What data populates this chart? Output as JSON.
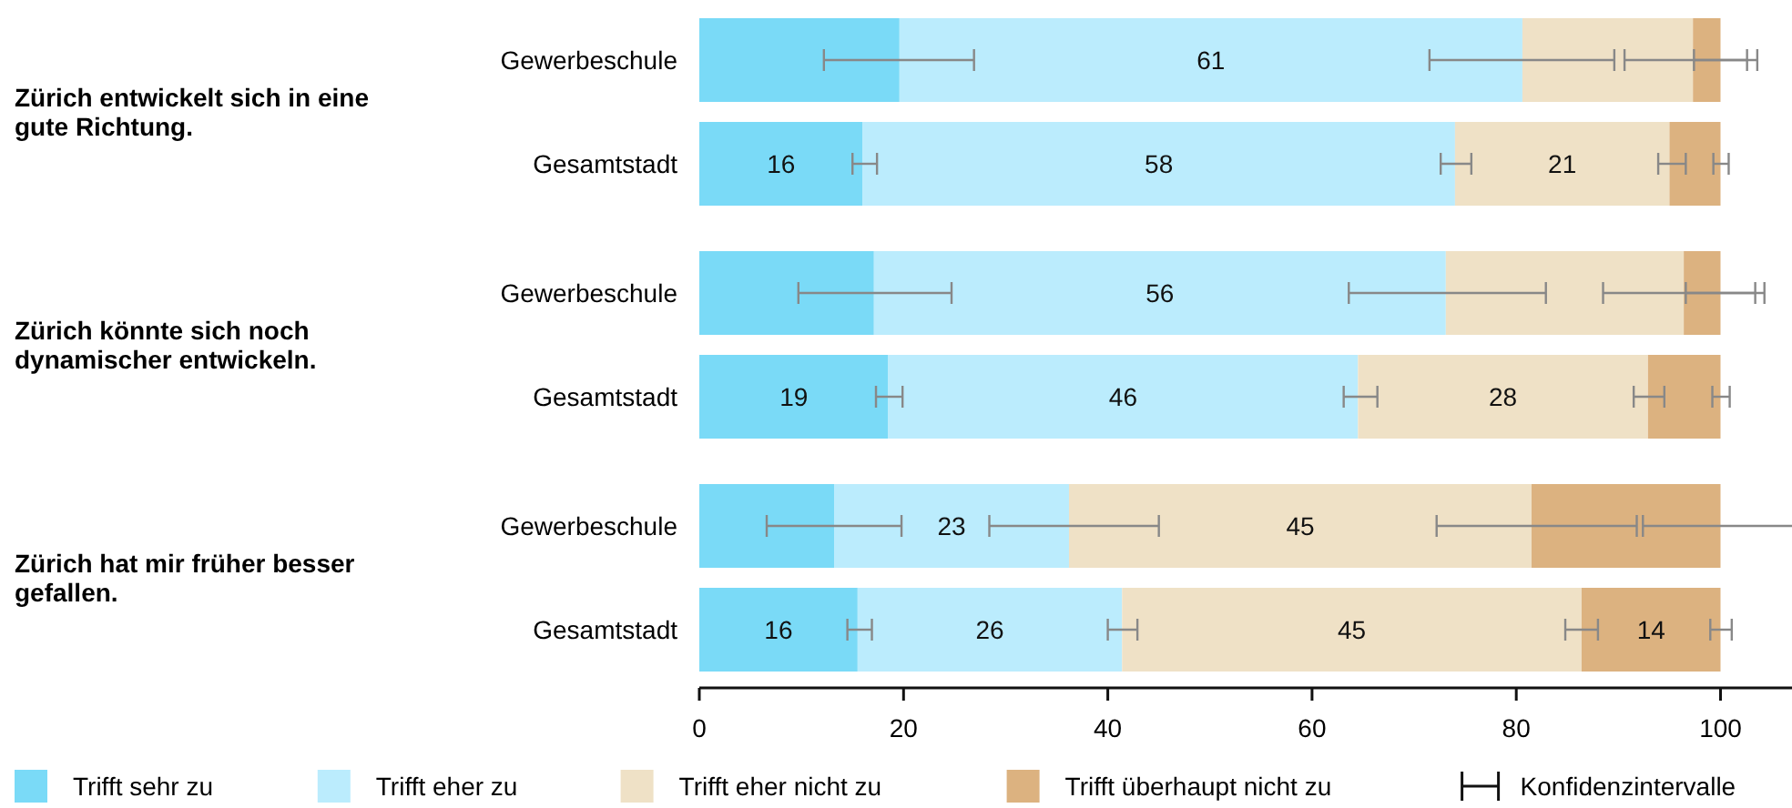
{
  "chart_data": {
    "type": "bar",
    "orientation": "horizontal",
    "stacked": true,
    "categories": [
      "Gewerbeschule",
      "Gesamtstadt",
      "Gewerbeschule",
      "Gesamtstadt",
      "Gewerbeschule",
      "Gesamtstadt"
    ],
    "series": [
      {
        "name": "Trifft sehr zu",
        "color": "#7adaf7",
        "values": [
          19.6,
          16,
          17.1,
          18.5,
          13.2,
          15.5
        ],
        "value_labels": [
          null,
          "16",
          null,
          "19",
          null,
          "16"
        ],
        "errors": [
          [
            12.2,
            26.9
          ],
          [
            15.0,
            17.4
          ],
          [
            9.7,
            24.7
          ],
          [
            17.3,
            19.9
          ],
          [
            6.6,
            19.8
          ],
          [
            14.5,
            16.9
          ]
        ]
      },
      {
        "name": "Trifft eher zu",
        "color": "#bbecfd",
        "values": [
          61,
          58,
          56,
          46,
          23,
          25.9
        ],
        "value_labels": [
          "61",
          "58",
          "56",
          "46",
          "23",
          "26"
        ],
        "errors": [
          [
            71.5,
            89.6
          ],
          [
            72.6,
            75.6
          ],
          [
            63.6,
            82.9
          ],
          [
            63.1,
            66.4
          ],
          [
            28.4,
            45.0
          ],
          [
            40.0,
            42.9
          ]
        ]
      },
      {
        "name": "Trifft eher nicht zu",
        "color": "#efe1c6",
        "values": [
          16.7,
          21,
          23.3,
          28.4,
          45.3,
          45
        ],
        "value_labels": [
          null,
          "21",
          null,
          "28",
          "45",
          "45"
        ],
        "errors": [
          [
            90.6,
            103.6
          ],
          [
            93.9,
            96.6
          ],
          [
            88.5,
            104.3
          ],
          [
            91.5,
            94.5
          ],
          [
            72.2,
            91.8
          ],
          [
            84.8,
            88.0
          ]
        ]
      },
      {
        "name": "Trifft überhaupt nicht zu",
        "color": "#dcb280",
        "values": [
          2.7,
          5,
          3.6,
          7.1,
          18.5,
          13.6
        ],
        "value_labels": [
          null,
          null,
          null,
          null,
          null,
          "14"
        ],
        "errors": [
          [
            97.4,
            102.6
          ],
          [
            99.3,
            100.8
          ],
          [
            96.6,
            103.4
          ],
          [
            99.2,
            100.9
          ],
          [
            92.4,
            107
          ],
          [
            99.0,
            101.1
          ]
        ]
      }
    ],
    "xlim": [
      0,
      107
    ],
    "xticks": [
      0,
      20,
      40,
      60,
      80,
      100
    ],
    "grid": false,
    "legend": "bottom",
    "annotations": [
      "Zürich entwickelt sich in eine gute Richtung.",
      "Zürich könnte sich noch dynamischer entwickeln.",
      "Zürich hat mir früher besser gefallen.",
      "Konfidenzintervalle"
    ]
  }
}
